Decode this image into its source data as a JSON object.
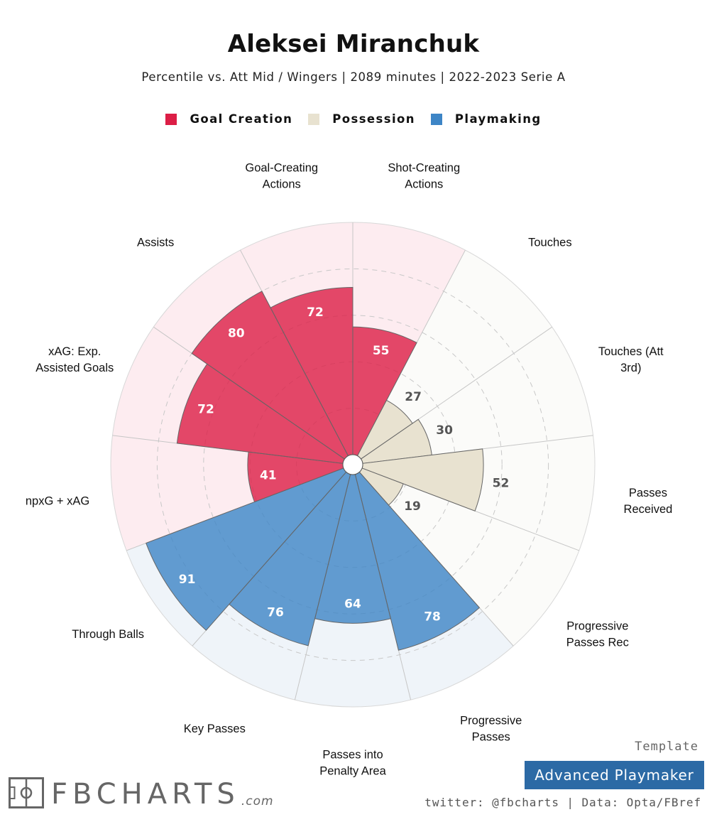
{
  "title": "Aleksei Miranchuk",
  "subtitle": "Percentile vs. Att Mid / Wingers | 2089 minutes | 2022-2023 Serie A",
  "legend": [
    {
      "label": "Goal Creation",
      "color": "#dc1e46"
    },
    {
      "label": "Possession",
      "color": "#e8e2d0"
    },
    {
      "label": "Playmaking",
      "color": "#3d85c6"
    }
  ],
  "template_label": "Template",
  "template_name": "Advanced Playmaker",
  "credits": "twitter: @fbcharts | Data: Opta/FBref",
  "logo": {
    "text": "FBCHARTS",
    "suffix": ".com"
  },
  "chart_data": {
    "type": "radial-bar",
    "scale": [
      0,
      100
    ],
    "gridlines": [
      20,
      40,
      60,
      80
    ],
    "categories": [
      {
        "label": [
          "Shot-Creating",
          "Actions"
        ],
        "value": 55,
        "group": "Goal Creation"
      },
      {
        "label": [
          "Touches"
        ],
        "value": 27,
        "group": "Possession"
      },
      {
        "label": [
          "Touches (Att",
          "3rd)"
        ],
        "value": 30,
        "group": "Possession"
      },
      {
        "label": [
          "Passes",
          "Received"
        ],
        "value": 52,
        "group": "Possession"
      },
      {
        "label": [
          "Progressive",
          "Passes Rec"
        ],
        "value": 19,
        "group": "Possession"
      },
      {
        "label": [
          "Progressive",
          "Passes"
        ],
        "value": 78,
        "group": "Playmaking"
      },
      {
        "label": [
          "Passes into",
          "Penalty Area"
        ],
        "value": 64,
        "group": "Playmaking"
      },
      {
        "label": [
          "Key Passes"
        ],
        "value": 76,
        "group": "Playmaking"
      },
      {
        "label": [
          "Through Balls"
        ],
        "value": 91,
        "group": "Playmaking"
      },
      {
        "label": [
          "npxG + xAG"
        ],
        "value": 41,
        "group": "Goal Creation"
      },
      {
        "label": [
          "xAG: Exp.",
          "Assisted Goals"
        ],
        "value": 72,
        "group": "Goal Creation"
      },
      {
        "label": [
          "Assists"
        ],
        "value": 80,
        "group": "Goal Creation"
      },
      {
        "label": [
          "Goal-Creating",
          "Actions"
        ],
        "value": 72,
        "group": "Goal Creation"
      }
    ]
  }
}
